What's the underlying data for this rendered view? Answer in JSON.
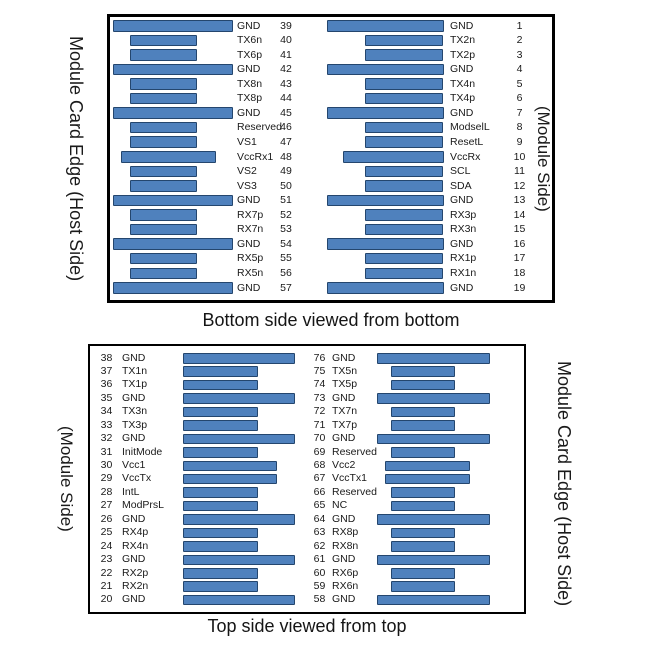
{
  "titles": {
    "top": "Bottom side viewed from bottom",
    "bottom": "Top side viewed from top"
  },
  "colors": {
    "bar_fill": "#4F81BD",
    "bar_border": "#24466E",
    "box_border": "#000000"
  },
  "top_section": {
    "left_side_label": "Module Card Edge (Host Side)",
    "right_side_label": "(Module Side)",
    "left_pins": [
      {
        "num": "39",
        "label": "GND",
        "type": "gnd"
      },
      {
        "num": "40",
        "label": "TX6n",
        "type": "signal"
      },
      {
        "num": "41",
        "label": "TX6p",
        "type": "signal"
      },
      {
        "num": "42",
        "label": "GND",
        "type": "gnd"
      },
      {
        "num": "43",
        "label": "TX8n",
        "type": "signal"
      },
      {
        "num": "44",
        "label": "TX8p",
        "type": "signal"
      },
      {
        "num": "45",
        "label": "GND",
        "type": "gnd"
      },
      {
        "num": "46",
        "label": "Reserved",
        "type": "signal"
      },
      {
        "num": "47",
        "label": "VS1",
        "type": "signal"
      },
      {
        "num": "48",
        "label": "VccRx1",
        "type": "power"
      },
      {
        "num": "49",
        "label": "VS2",
        "type": "signal"
      },
      {
        "num": "50",
        "label": "VS3",
        "type": "signal"
      },
      {
        "num": "51",
        "label": "GND",
        "type": "gnd"
      },
      {
        "num": "52",
        "label": "RX7p",
        "type": "signal"
      },
      {
        "num": "53",
        "label": "RX7n",
        "type": "signal"
      },
      {
        "num": "54",
        "label": "GND",
        "type": "gnd"
      },
      {
        "num": "55",
        "label": "RX5p",
        "type": "signal"
      },
      {
        "num": "56",
        "label": "RX5n",
        "type": "signal"
      },
      {
        "num": "57",
        "label": "GND",
        "type": "gnd"
      }
    ],
    "right_pins": [
      {
        "num": "1",
        "label": "GND",
        "type": "gnd"
      },
      {
        "num": "2",
        "label": "TX2n",
        "type": "signal"
      },
      {
        "num": "3",
        "label": "TX2p",
        "type": "signal"
      },
      {
        "num": "4",
        "label": "GND",
        "type": "gnd"
      },
      {
        "num": "5",
        "label": "TX4n",
        "type": "signal"
      },
      {
        "num": "6",
        "label": "TX4p",
        "type": "signal"
      },
      {
        "num": "7",
        "label": "GND",
        "type": "gnd"
      },
      {
        "num": "8",
        "label": "ModselL",
        "type": "signal"
      },
      {
        "num": "9",
        "label": "ResetL",
        "type": "signal"
      },
      {
        "num": "10",
        "label": "VccRx",
        "type": "power"
      },
      {
        "num": "11",
        "label": "SCL",
        "type": "signal"
      },
      {
        "num": "12",
        "label": "SDA",
        "type": "signal"
      },
      {
        "num": "13",
        "label": "GND",
        "type": "gnd"
      },
      {
        "num": "14",
        "label": "RX3p",
        "type": "signal"
      },
      {
        "num": "15",
        "label": "RX3n",
        "type": "signal"
      },
      {
        "num": "16",
        "label": "GND",
        "type": "gnd"
      },
      {
        "num": "17",
        "label": "RX1p",
        "type": "signal"
      },
      {
        "num": "18",
        "label": "RX1n",
        "type": "signal"
      },
      {
        "num": "19",
        "label": "GND",
        "type": "gnd"
      }
    ]
  },
  "bottom_section": {
    "left_side_label": "(Module Side)",
    "right_side_label": "Module Card Edge (Host Side)",
    "left_pins": [
      {
        "num": "38",
        "label": "GND",
        "type": "gnd"
      },
      {
        "num": "37",
        "label": "TX1n",
        "type": "signal"
      },
      {
        "num": "36",
        "label": "TX1p",
        "type": "signal"
      },
      {
        "num": "35",
        "label": "GND",
        "type": "gnd"
      },
      {
        "num": "34",
        "label": "TX3n",
        "type": "signal"
      },
      {
        "num": "33",
        "label": "TX3p",
        "type": "signal"
      },
      {
        "num": "32",
        "label": "GND",
        "type": "gnd"
      },
      {
        "num": "31",
        "label": "InitMode",
        "type": "signal"
      },
      {
        "num": "30",
        "label": "Vcc1",
        "type": "power"
      },
      {
        "num": "29",
        "label": "VccTx",
        "type": "power"
      },
      {
        "num": "28",
        "label": "IntL",
        "type": "signal"
      },
      {
        "num": "27",
        "label": "ModPrsL",
        "type": "signal"
      },
      {
        "num": "26",
        "label": "GND",
        "type": "gnd"
      },
      {
        "num": "25",
        "label": "RX4p",
        "type": "signal"
      },
      {
        "num": "24",
        "label": "RX4n",
        "type": "signal"
      },
      {
        "num": "23",
        "label": "GND",
        "type": "gnd"
      },
      {
        "num": "22",
        "label": "RX2p",
        "type": "signal"
      },
      {
        "num": "21",
        "label": "RX2n",
        "type": "signal"
      },
      {
        "num": "20",
        "label": "GND",
        "type": "gnd"
      }
    ],
    "right_pins": [
      {
        "num": "76",
        "label": "GND",
        "type": "gnd"
      },
      {
        "num": "75",
        "label": "TX5n",
        "type": "signal"
      },
      {
        "num": "74",
        "label": "TX5p",
        "type": "signal"
      },
      {
        "num": "73",
        "label": "GND",
        "type": "gnd"
      },
      {
        "num": "72",
        "label": "TX7n",
        "type": "signal"
      },
      {
        "num": "71",
        "label": "TX7p",
        "type": "signal"
      },
      {
        "num": "70",
        "label": "GND",
        "type": "gnd"
      },
      {
        "num": "69",
        "label": "Reserved",
        "type": "signal"
      },
      {
        "num": "68",
        "label": "Vcc2",
        "type": "power"
      },
      {
        "num": "67",
        "label": "VccTx1",
        "type": "power"
      },
      {
        "num": "66",
        "label": "Reserved",
        "type": "signal"
      },
      {
        "num": "65",
        "label": "NC",
        "type": "signal"
      },
      {
        "num": "64",
        "label": "GND",
        "type": "gnd"
      },
      {
        "num": "63",
        "label": "RX8p",
        "type": "signal"
      },
      {
        "num": "62",
        "label": "RX8n",
        "type": "signal"
      },
      {
        "num": "61",
        "label": "GND",
        "type": "gnd"
      },
      {
        "num": "60",
        "label": "RX6p",
        "type": "signal"
      },
      {
        "num": "59",
        "label": "RX6n",
        "type": "signal"
      },
      {
        "num": "58",
        "label": "GND",
        "type": "gnd"
      }
    ]
  }
}
